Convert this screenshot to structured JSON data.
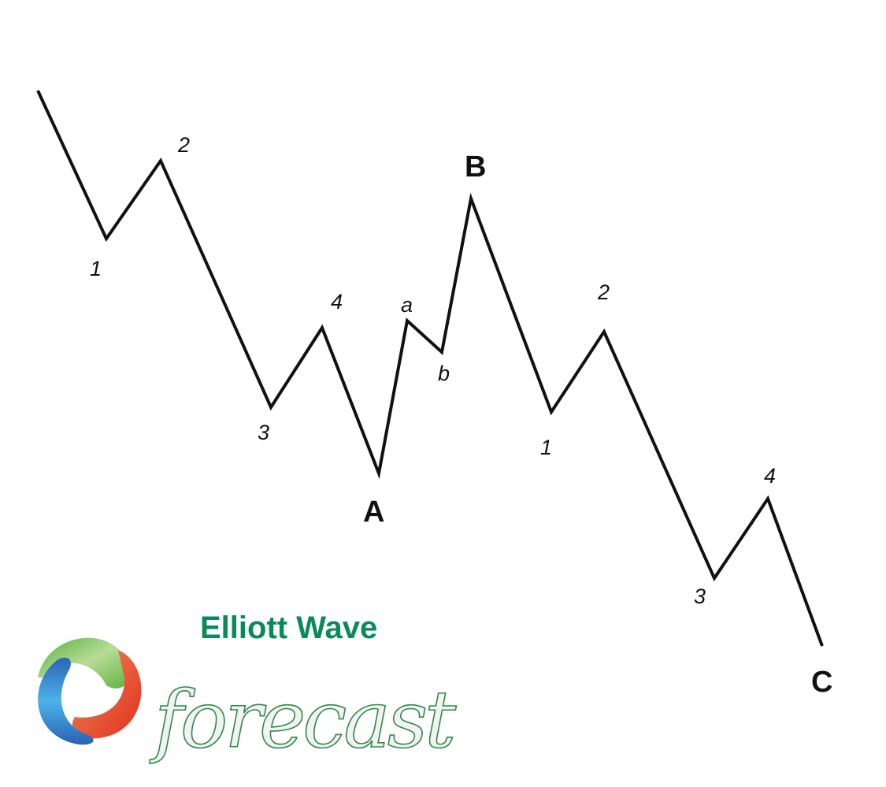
{
  "diagram": {
    "labels": {
      "w1": "1",
      "w2": "2",
      "w3": "3",
      "w4": "4",
      "A": "A",
      "a": "a",
      "b": "b",
      "B": "B",
      "c1": "1",
      "c2": "2",
      "c3": "3",
      "c4": "4",
      "C": "C"
    },
    "line_color": "#111111"
  },
  "logo": {
    "brand_line1": "Elliott Wave",
    "brand_line2": "forecast",
    "brand_color": "#0a8a5a",
    "ring_colors": [
      "#6cbf4a",
      "#e8472a",
      "#2f7fd0"
    ]
  }
}
